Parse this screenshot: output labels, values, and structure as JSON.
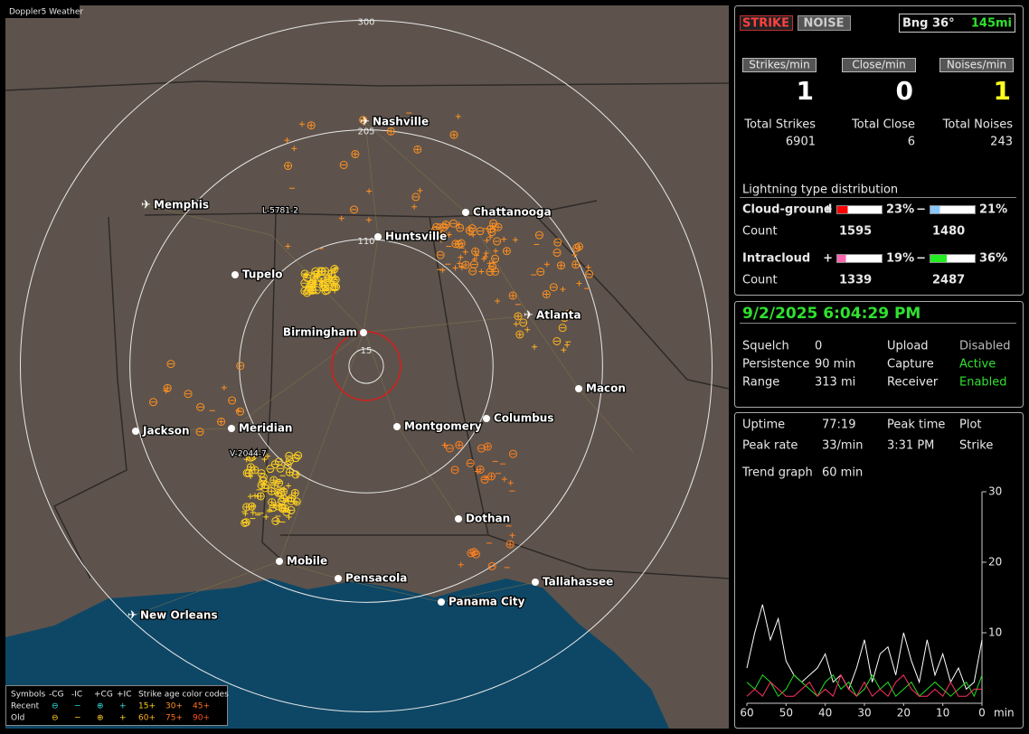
{
  "map": {
    "badge": "Doppler5 Weather",
    "range_rings": [
      15,
      110,
      205,
      300
    ],
    "cities": [
      "Nashville",
      "Memphis",
      "Chattanooga",
      "Huntsville",
      "Tupelo",
      "Birmingham",
      "Atlanta",
      "Macon",
      "Jackson",
      "Meridian",
      "Montgomery",
      "Columbus",
      "Dothan",
      "Mobile",
      "Pensacola",
      "Tallahassee",
      "Panama City",
      "New Orleans"
    ],
    "tracks": [
      "L-5781-2",
      "V-2044-7"
    ],
    "legend": {
      "symbols_label": "Symbols",
      "symbols": [
        "-CG",
        "-IC",
        "+CG",
        "+IC"
      ],
      "age_label": "Strike age color codes",
      "rows": [
        {
          "label": "Recent",
          "ages": [
            "15+",
            "30+",
            "45+"
          ]
        },
        {
          "label": "Old",
          "ages": [
            "60+",
            "75+",
            "90+"
          ]
        }
      ]
    }
  },
  "header": {
    "strike": "STRIKE",
    "noise": "NOISE",
    "bearing": "Bng 36°",
    "distance": "145mi"
  },
  "rates": [
    {
      "label": "Strikes/min",
      "value": 1
    },
    {
      "label": "Close/min",
      "value": 0
    },
    {
      "label": "Noises/min",
      "value": 1
    }
  ],
  "totals": [
    {
      "label": "Total Strikes",
      "value": 6901
    },
    {
      "label": "Total Close",
      "value": 6
    },
    {
      "label": "Total Noises",
      "value": 243
    }
  ],
  "distribution": {
    "title": "Lightning type distribution",
    "count_label": "Count",
    "signs": [
      "+",
      "−"
    ],
    "rows": [
      {
        "name": "Cloud-ground",
        "values": [
          23,
          21
        ],
        "value_labels": [
          "23%",
          "21%"
        ],
        "counts": [
          1595,
          1480
        ],
        "colors": [
          "#ff0000",
          "#88c8ff"
        ]
      },
      {
        "name": "Intracloud",
        "values": [
          19,
          36
        ],
        "value_labels": [
          "19%",
          "36%"
        ],
        "counts": [
          1339,
          2487
        ],
        "colors": [
          "#ff66b0",
          "#22ee22"
        ]
      }
    ]
  },
  "status": {
    "datetime": "9/2/2025 6:04:29 PM",
    "items": [
      {
        "label": "Squelch",
        "value": 0
      },
      {
        "label": "Upload",
        "value": "Disabled"
      },
      {
        "label": "Persistence",
        "value": "90 min"
      },
      {
        "label": "Capture",
        "value": "Active"
      },
      {
        "label": "Range",
        "value": "313 mi"
      },
      {
        "label": "Receiver",
        "value": "Enabled"
      }
    ]
  },
  "stats": {
    "rows": [
      [
        "Uptime",
        "77:19",
        "Peak time",
        "Plot"
      ],
      [
        "Peak rate",
        "33/min",
        "3:31 PM",
        "Strike"
      ]
    ],
    "trend_label": "Trend graph",
    "trend_value": "60 min"
  },
  "trend": {
    "type": "line",
    "xlim": [
      60,
      0
    ],
    "xticks": [
      60,
      50,
      40,
      30,
      20,
      10,
      0
    ],
    "x_unit": "min",
    "ylim": [
      0,
      30
    ],
    "yticks": [
      10,
      20,
      30
    ],
    "x": [
      60,
      58,
      56,
      54,
      52,
      50,
      48,
      46,
      44,
      42,
      40,
      38,
      36,
      34,
      32,
      30,
      28,
      26,
      24,
      22,
      20,
      18,
      16,
      14,
      12,
      10,
      8,
      6,
      4,
      2,
      0
    ],
    "series": [
      {
        "color": "#ffffff",
        "values": [
          5,
          10,
          14,
          9,
          12,
          6,
          4,
          3,
          4,
          5,
          7,
          3,
          4,
          2,
          5,
          9,
          3,
          7,
          8,
          4,
          10,
          6,
          3,
          9,
          4,
          7,
          3,
          5,
          2,
          3,
          9
        ]
      },
      {
        "color": "#22dd22",
        "values": [
          3,
          2,
          4,
          3,
          1,
          2,
          4,
          3,
          2,
          1,
          3,
          4,
          2,
          3,
          1,
          2,
          4,
          2,
          3,
          1,
          2,
          3,
          1,
          2,
          3,
          2,
          1,
          2,
          3,
          1,
          4
        ]
      },
      {
        "color": "#ff3060",
        "values": [
          1,
          2,
          1,
          3,
          2,
          1,
          1,
          2,
          3,
          1,
          2,
          1,
          4,
          2,
          1,
          3,
          1,
          2,
          1,
          3,
          4,
          2,
          1,
          1,
          2,
          1,
          3,
          1,
          1,
          2,
          2
        ]
      }
    ]
  }
}
